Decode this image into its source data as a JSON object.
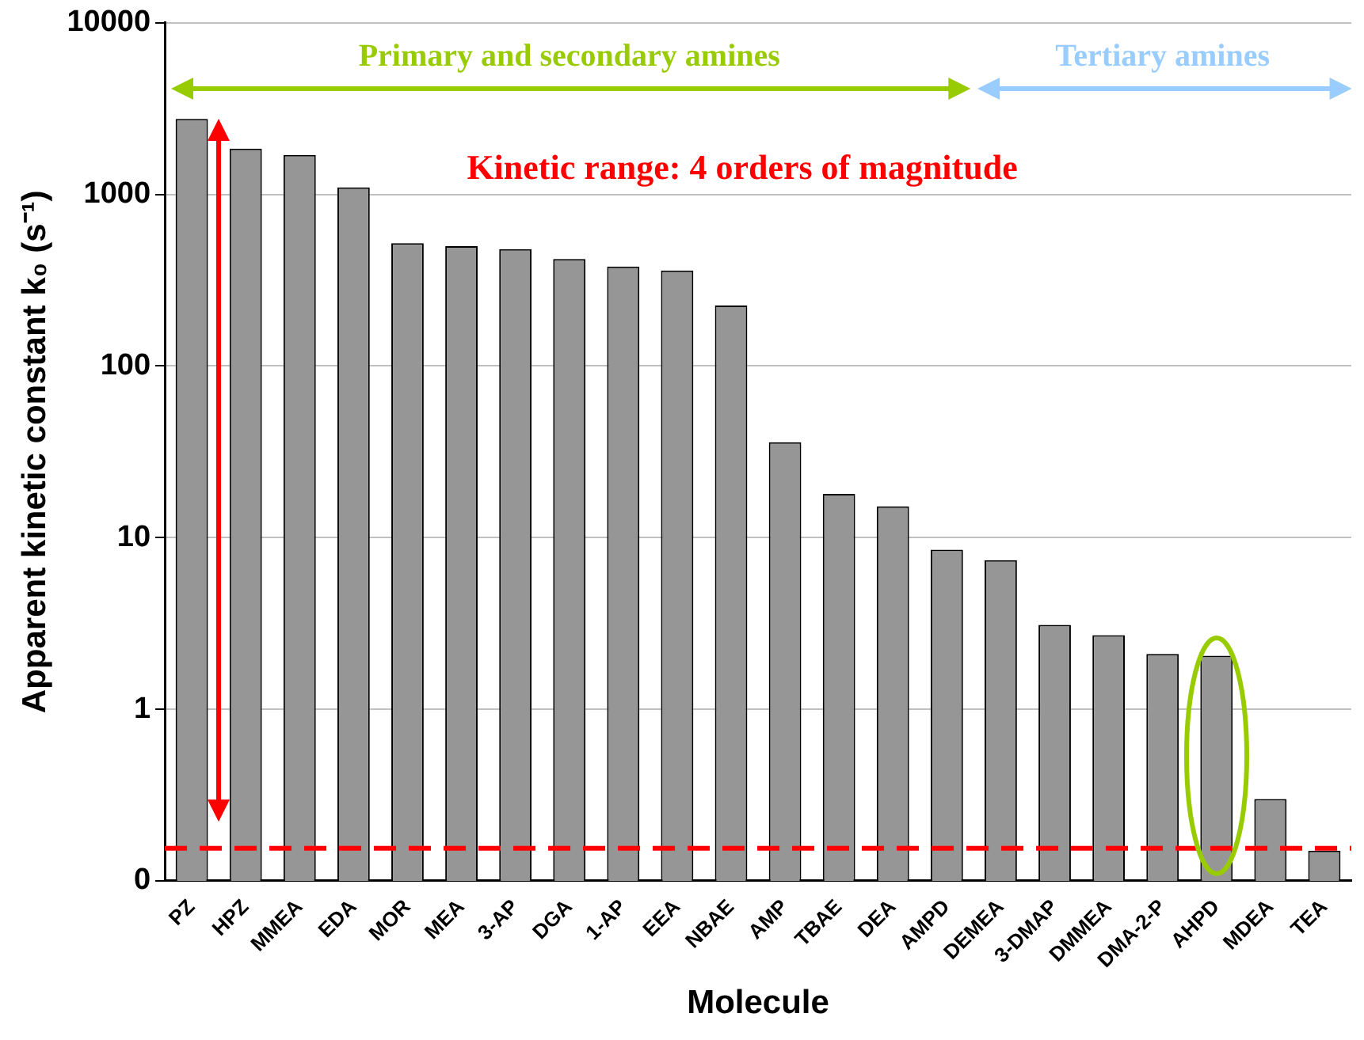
{
  "chart_data": {
    "type": "bar",
    "xlabel": "Molecule",
    "ylabel": "Apparent kinetic constant k₀ (s⁻¹)",
    "categories": [
      "PZ",
      "HPZ",
      "MMEA",
      "EDA",
      "MOR",
      "MEA",
      "3-AP",
      "DGA",
      "1-AP",
      "EEA",
      "NBAE",
      "AMP",
      "TBAE",
      "DEA",
      "AMPD",
      "DEMEA",
      "3-DMAP",
      "DMMEA",
      "DMA-2-P",
      "AHPD",
      "MDEA",
      "TEA"
    ],
    "values": [
      2750,
      1850,
      1700,
      1100,
      520,
      500,
      480,
      420,
      380,
      360,
      225,
      36,
      18,
      15.2,
      8.5,
      7.4,
      3.1,
      2.7,
      2.1,
      2.05,
      0.3,
      0.15
    ],
    "color": "#969696",
    "log": true,
    "ylim": [
      0.1,
      10000
    ],
    "yticks": [
      {
        "value": 0.1,
        "label": "0"
      },
      1,
      10,
      100,
      1000,
      10000
    ],
    "grid": "y",
    "legend": false,
    "ref_lines": [
      {
        "axis": "y",
        "value": 0.155,
        "color": "#ff0000",
        "line_style": "dashed"
      }
    ],
    "annotations": [
      "Primary and secondary amines",
      "Tertiary amines",
      "Kinetic range: 4 orders of magnitude"
    ]
  }
}
